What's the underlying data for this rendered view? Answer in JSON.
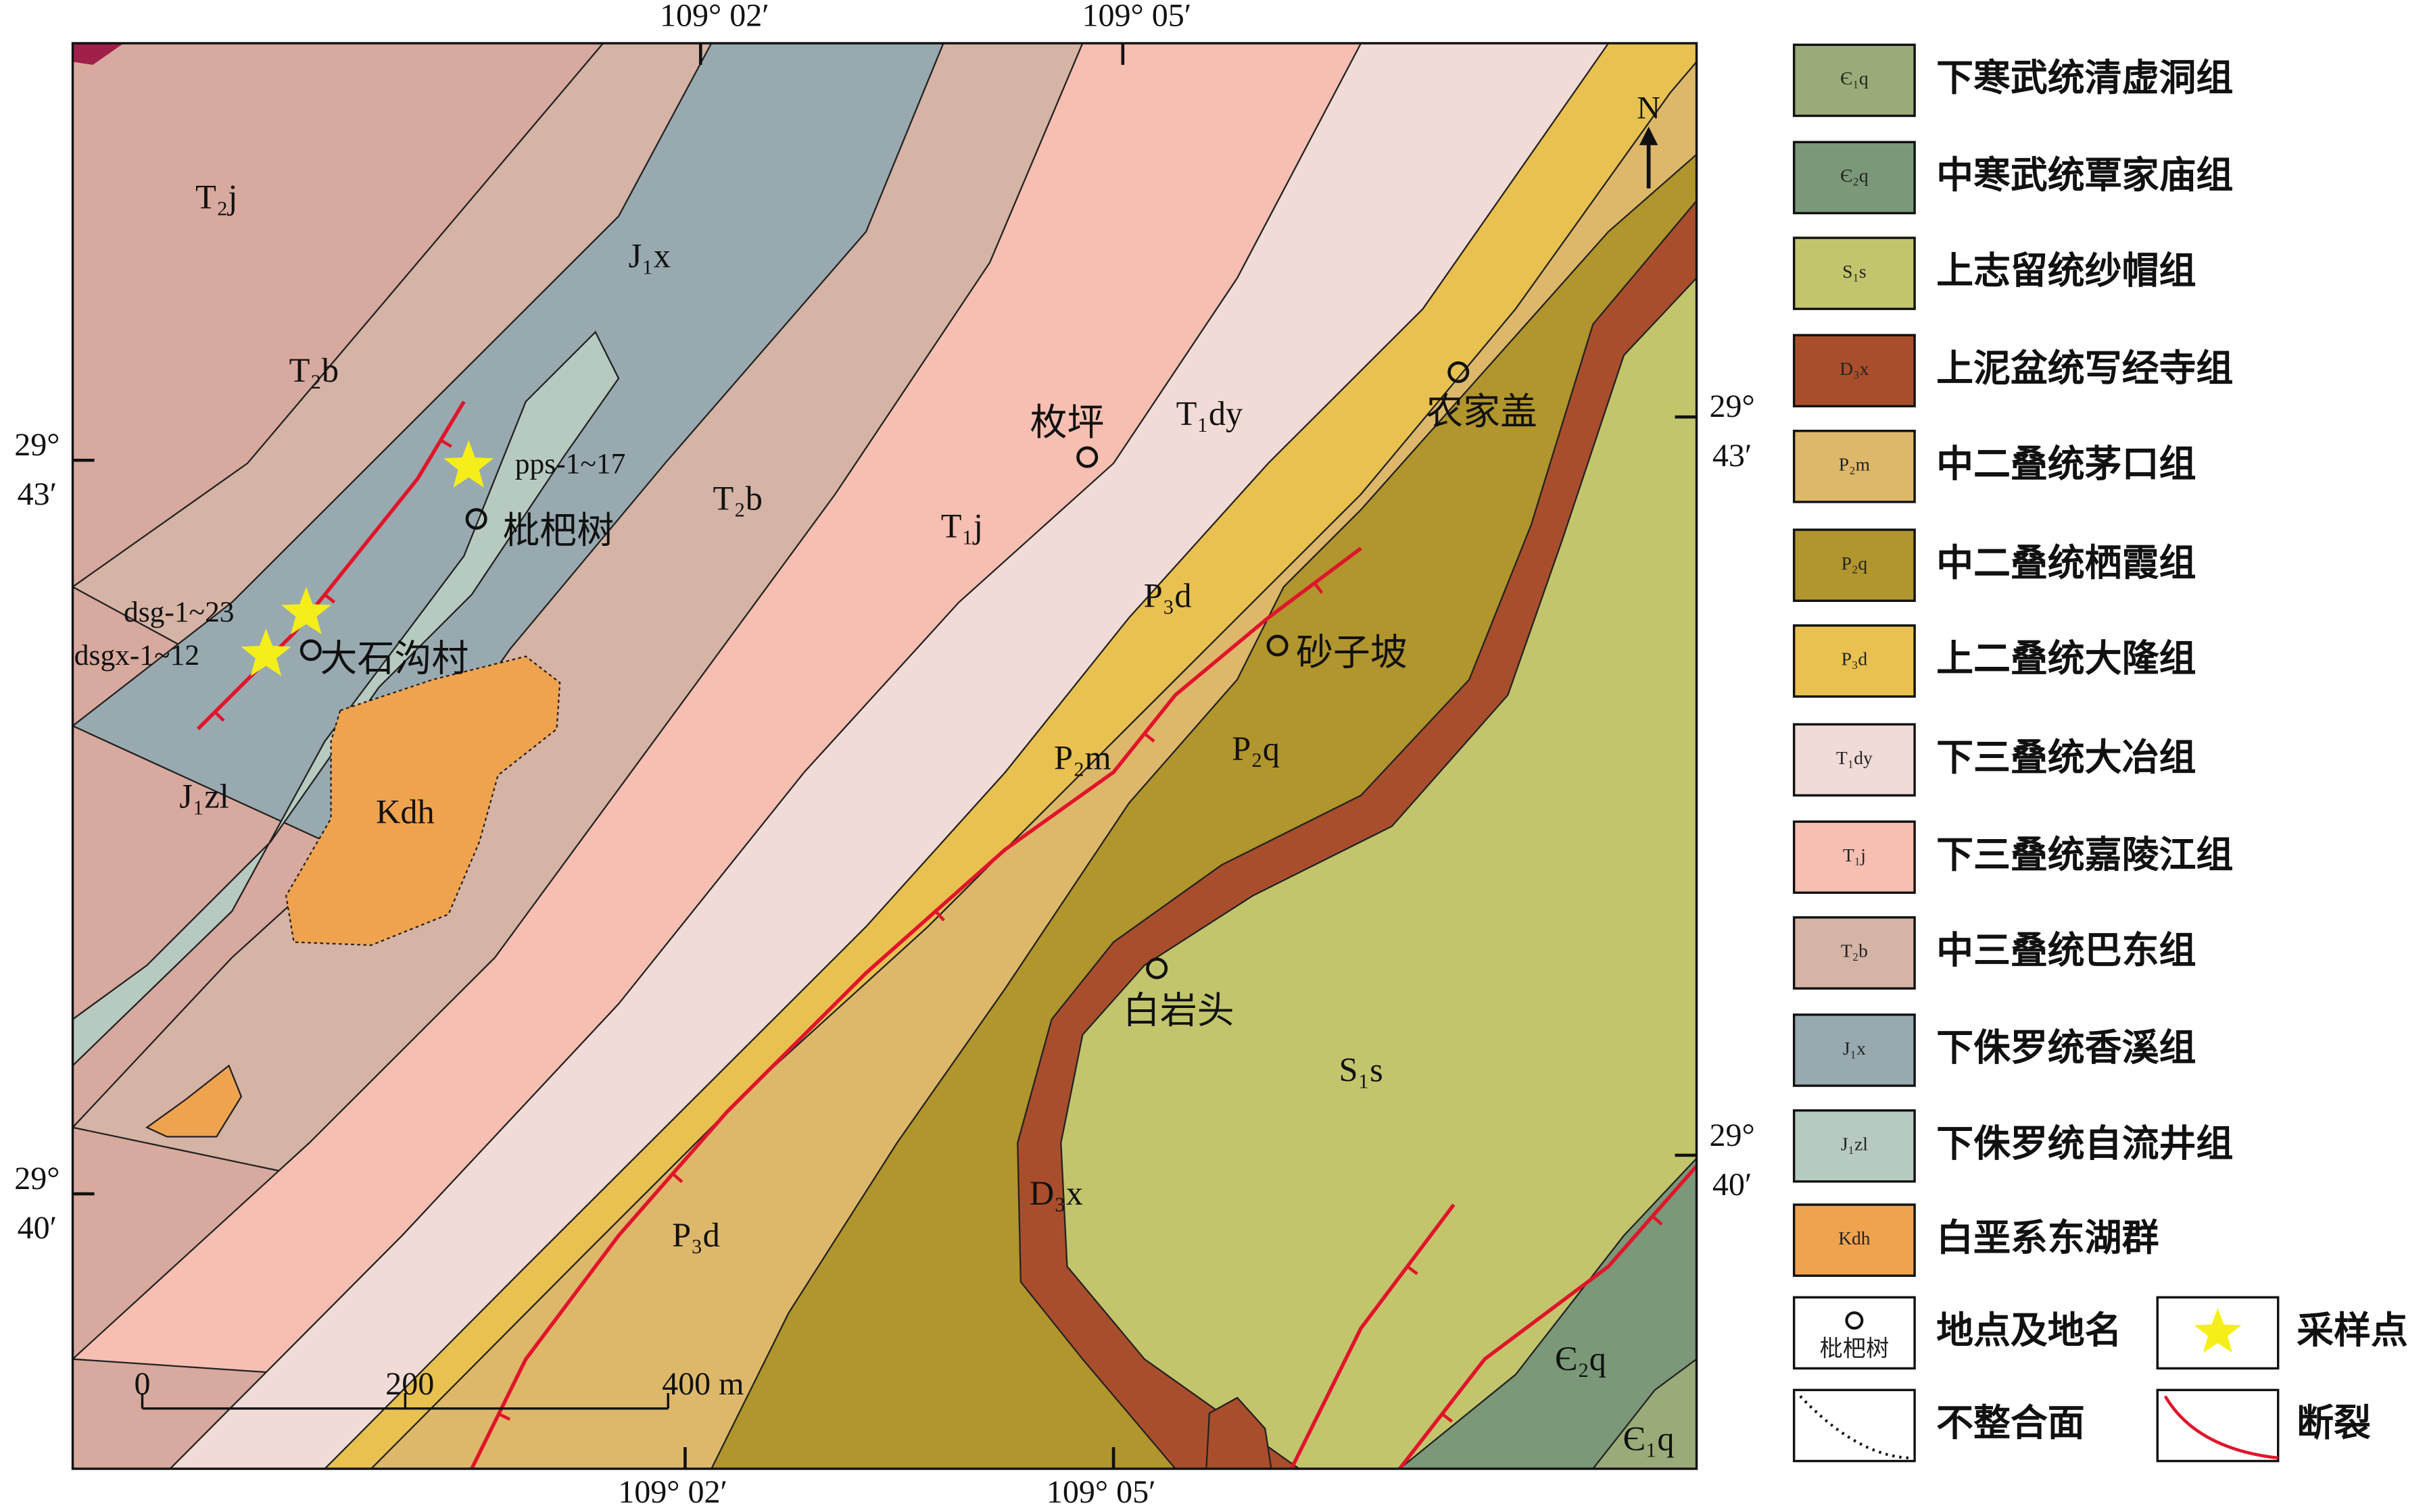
{
  "map": {
    "coordinates": {
      "top": [
        "109° 02′",
        "109° 05′"
      ],
      "bottom": [
        "109° 02′",
        "109° 05′"
      ],
      "left": [
        [
          "29°",
          "43′"
        ],
        [
          "29°",
          "40′"
        ]
      ],
      "right": [
        [
          "29°",
          "43′"
        ],
        [
          "29°",
          "40′"
        ]
      ]
    },
    "north": "N",
    "units": [
      "T₂j",
      "J₁x",
      "T₂b",
      "T₂b",
      "T₁j",
      "T₁dy",
      "P₃d",
      "P₂m",
      "P₂q",
      "J₁zl",
      "Kdh",
      "S₁s",
      "D₃x",
      "P₃d",
      "Є₂q",
      "Є₁q"
    ],
    "places": [
      "枇杷树",
      "大石沟村",
      "枚坪",
      "农家盖",
      "砂子坡",
      "白岩头"
    ],
    "samples": [
      "pps-1~17",
      "dsg-1~23",
      "dsgx-1~12"
    ],
    "scale": [
      "0",
      "200",
      "400 m"
    ]
  },
  "legend": {
    "items": [
      {
        "code": "Є₁q",
        "label": "下寒武统清虚洞组",
        "color": "#9aab79"
      },
      {
        "code": "Є₂q",
        "label": "中寒武统覃家庙组",
        "color": "#7b9878"
      },
      {
        "code": "S₁s",
        "label": "上志留统纱帽组",
        "color": "#c3c56d"
      },
      {
        "code": "D₃x",
        "label": "上泥盆统写经寺组",
        "color": "#a94e2c"
      },
      {
        "code": "P₂m",
        "label": "中二叠统茅口组",
        "color": "#deb86a"
      },
      {
        "code": "P₂q",
        "label": "中二叠统栖霞组",
        "color": "#b1952d"
      },
      {
        "code": "P₃d",
        "label": "上二叠统大隆组",
        "color": "#e9c150"
      },
      {
        "code": "T₁dy",
        "label": "下三叠统大冶组",
        "color": "#f1dbd6"
      },
      {
        "code": "T₁j",
        "label": "下三叠统嘉陵江组",
        "color": "#f6bfb1"
      },
      {
        "code": "T₂b",
        "label": "中三叠统巴东组",
        "color": "#d5b3a5"
      },
      {
        "code": "J₁x",
        "label": "下侏罗统香溪组",
        "color": "#98aab0"
      },
      {
        "code": "J₁zl",
        "label": "下侏罗统自流井组",
        "color": "#b7cac0"
      },
      {
        "code": "Kdh",
        "label": "白垩系东湖群",
        "color": "#f0a34f"
      }
    ],
    "symbols": [
      {
        "label": "地点及地名",
        "icon_text": "枇杷树"
      },
      {
        "label": "采样点"
      },
      {
        "label": "不整合面"
      },
      {
        "label": "断裂"
      }
    ]
  }
}
